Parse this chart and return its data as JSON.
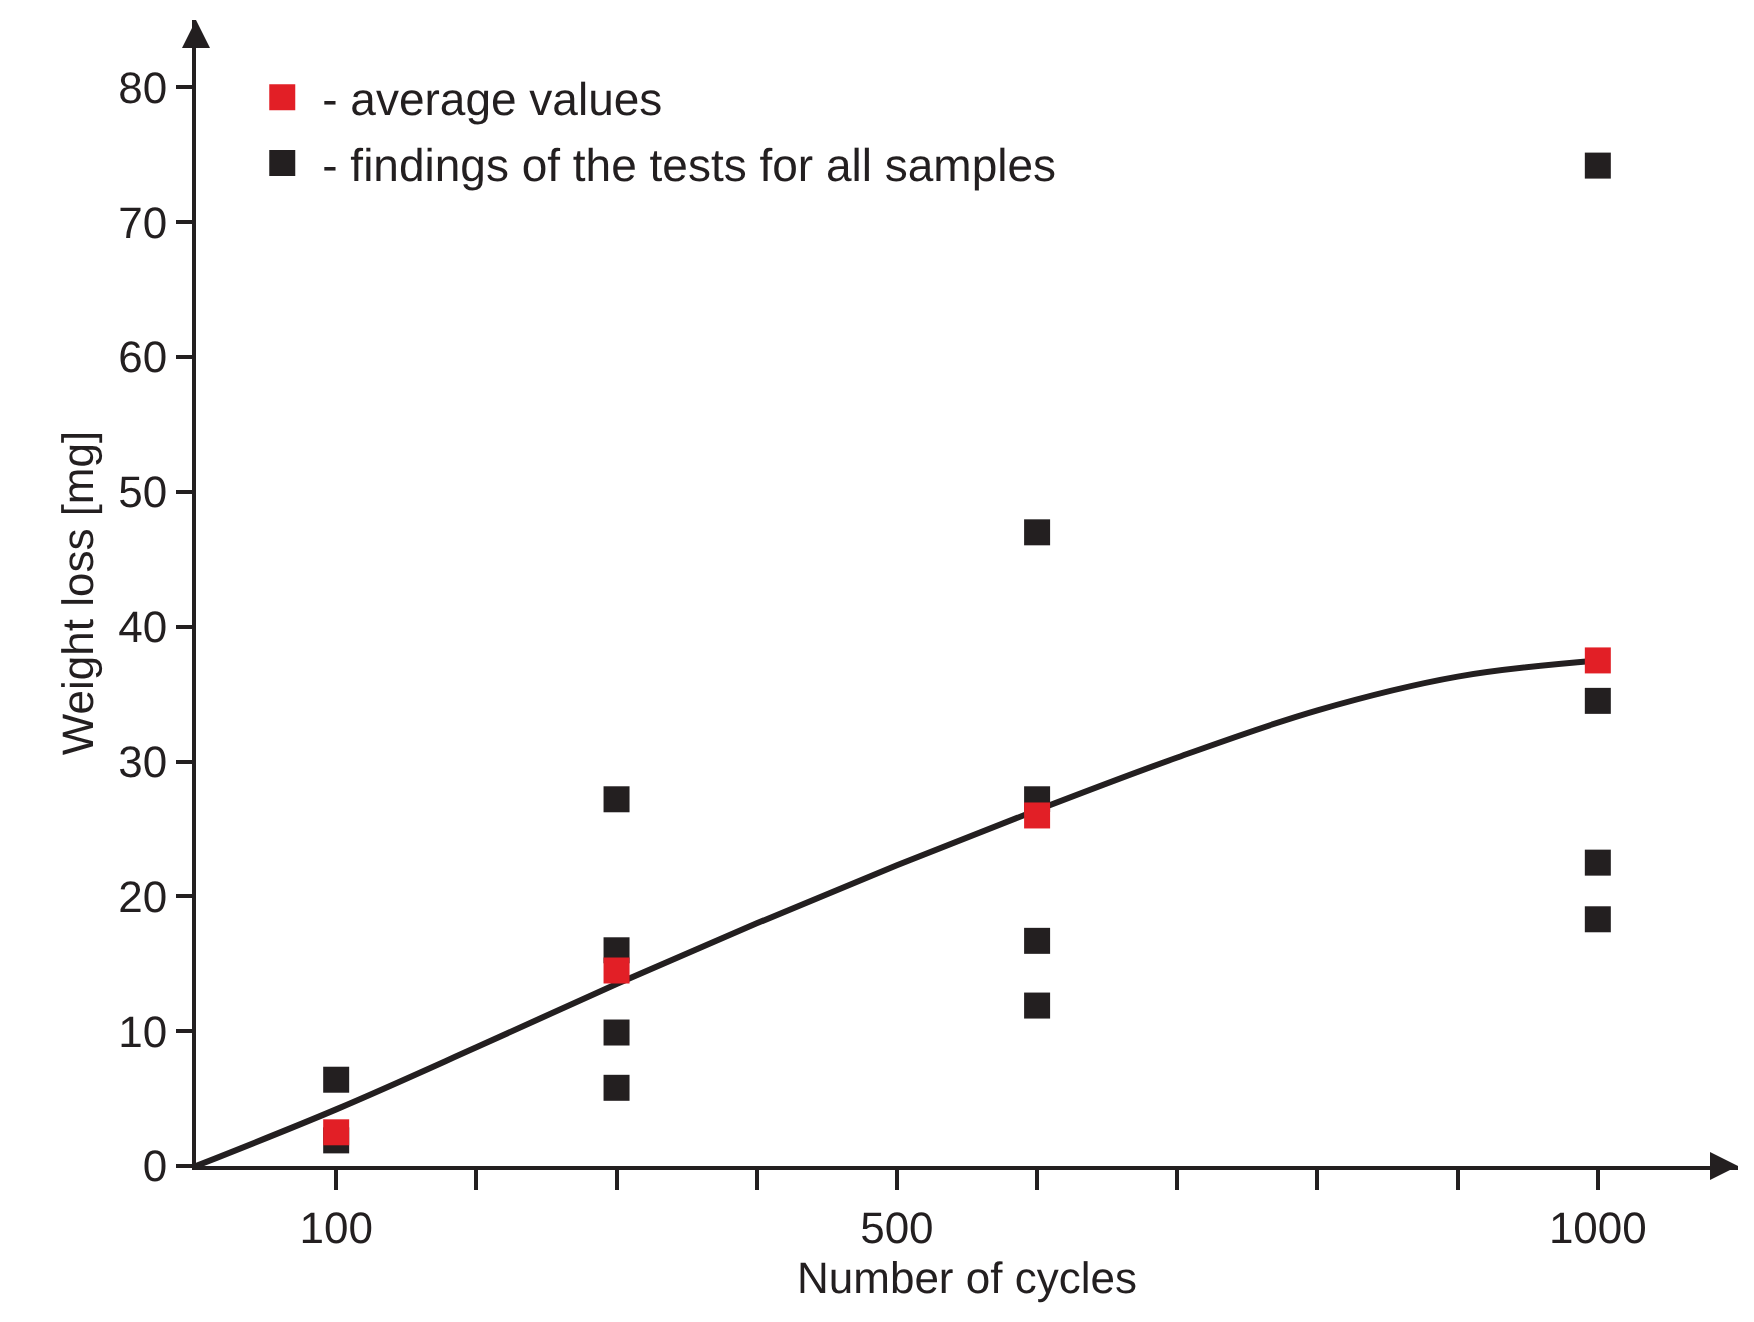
{
  "chart_data": {
    "type": "scatter",
    "xlabel": "Number of cycles",
    "ylabel": "Weight loss [mg]",
    "xlim": [
      0,
      1100
    ],
    "ylim": [
      0,
      85
    ],
    "xticks": [
      {
        "value": 100,
        "label": "100"
      },
      {
        "value": 200,
        "label": null
      },
      {
        "value": 300,
        "label": null
      },
      {
        "value": 400,
        "label": null
      },
      {
        "value": 500,
        "label": "500"
      },
      {
        "value": 600,
        "label": null
      },
      {
        "value": 700,
        "label": null
      },
      {
        "value": 800,
        "label": null
      },
      {
        "value": 900,
        "label": null
      },
      {
        "value": 1000,
        "label": "1000"
      }
    ],
    "yticks": [
      0,
      10,
      20,
      30,
      40,
      50,
      60,
      70,
      80
    ],
    "grid": false,
    "legend": "top left",
    "marker": "square",
    "series": [
      {
        "name": "- findings of the tests for all samples",
        "color": "#231f20",
        "x": [
          100,
          100,
          300,
          300,
          300,
          300,
          600,
          600,
          600,
          600,
          1000,
          1000,
          1000,
          1000
        ],
        "values": [
          6.4,
          1.9,
          27.2,
          16,
          9.9,
          5.8,
          47,
          27.2,
          16.7,
          11.9,
          74.2,
          34.5,
          22.5,
          18.3
        ]
      },
      {
        "name": "- average values",
        "color": "#e21f26",
        "x": [
          100,
          300,
          600,
          1000
        ],
        "values": [
          2.5,
          14.5,
          26,
          37.5
        ]
      },
      {
        "type": "line",
        "color": "#231f20",
        "marker": "none",
        "line_style": "solid",
        "x": [
          0,
          100,
          200,
          300,
          400,
          500,
          600,
          700,
          800,
          900,
          1000
        ],
        "values": [
          0,
          4.2,
          8.8,
          13.5,
          18,
          22.3,
          26.4,
          30.3,
          33.8,
          36.3,
          37.5
        ]
      }
    ]
  }
}
